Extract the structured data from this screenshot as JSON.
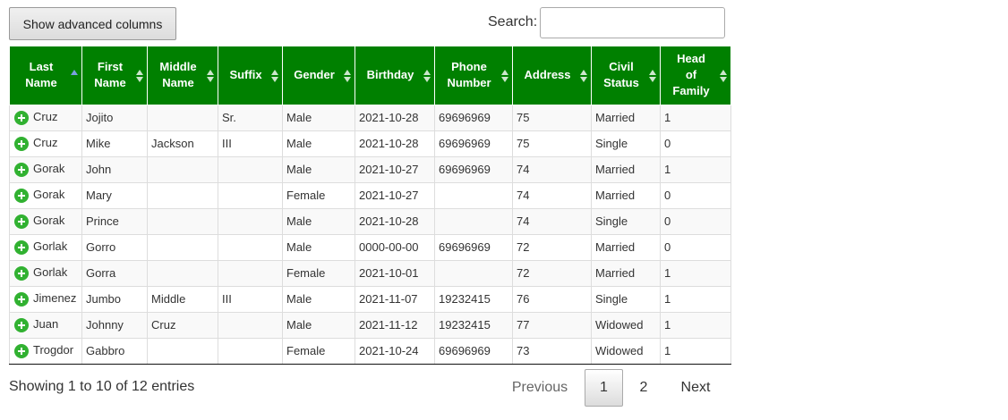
{
  "toolbar": {
    "button": "Show advanced columns",
    "search_label": "Search:"
  },
  "table": {
    "headers": [
      "Last\nName",
      "First\nName",
      "Middle\nName",
      "Suffix",
      "Gender",
      "Birthday",
      "Phone\nNumber",
      "Address",
      "Civil\nStatus",
      "Head\nof\nFamily"
    ],
    "rows": [
      [
        "Cruz",
        "Jojito",
        null,
        "Sr.",
        "Male",
        "2021-10-28",
        "69696969",
        "75",
        "Married",
        "1"
      ],
      [
        "Cruz",
        "Mike",
        "Jackson",
        "III",
        "Male",
        "2021-10-28",
        "69696969",
        "75",
        "Single",
        "0"
      ],
      [
        "Gorak",
        "John",
        null,
        null,
        "Male",
        "2021-10-27",
        "69696969",
        "74",
        "Married",
        "1"
      ],
      [
        "Gorak",
        "Mary",
        null,
        null,
        "Female",
        "2021-10-27",
        null,
        "74",
        "Married",
        "0"
      ],
      [
        "Gorak",
        "Prince",
        null,
        null,
        "Male",
        "2021-10-28",
        null,
        "74",
        "Single",
        "0"
      ],
      [
        "Gorlak",
        "Gorro",
        null,
        null,
        "Male",
        "0000-00-00",
        "69696969",
        "72",
        "Married",
        "0"
      ],
      [
        "Gorlak",
        "Gorra",
        null,
        null,
        "Female",
        "2021-10-01",
        null,
        "72",
        "Married",
        "1"
      ],
      [
        "Jimenez",
        "Jumbo",
        "Middle",
        "III",
        "Male",
        "2021-11-07",
        "19232415",
        "76",
        "Single",
        "1"
      ],
      [
        "Juan",
        "Johnny",
        "Cruz",
        null,
        "Male",
        "2021-11-12",
        "19232415",
        "77",
        "Widowed",
        "1"
      ],
      [
        "Trogdor",
        "Gabbro",
        null,
        null,
        "Female",
        "2021-10-24",
        "69696969",
        "73",
        "Widowed",
        "1"
      ]
    ]
  },
  "footer": {
    "info": "Showing 1 to 10 of 12 entries",
    "pagination": [
      "Previous",
      "1",
      "2",
      "Next"
    ]
  }
}
